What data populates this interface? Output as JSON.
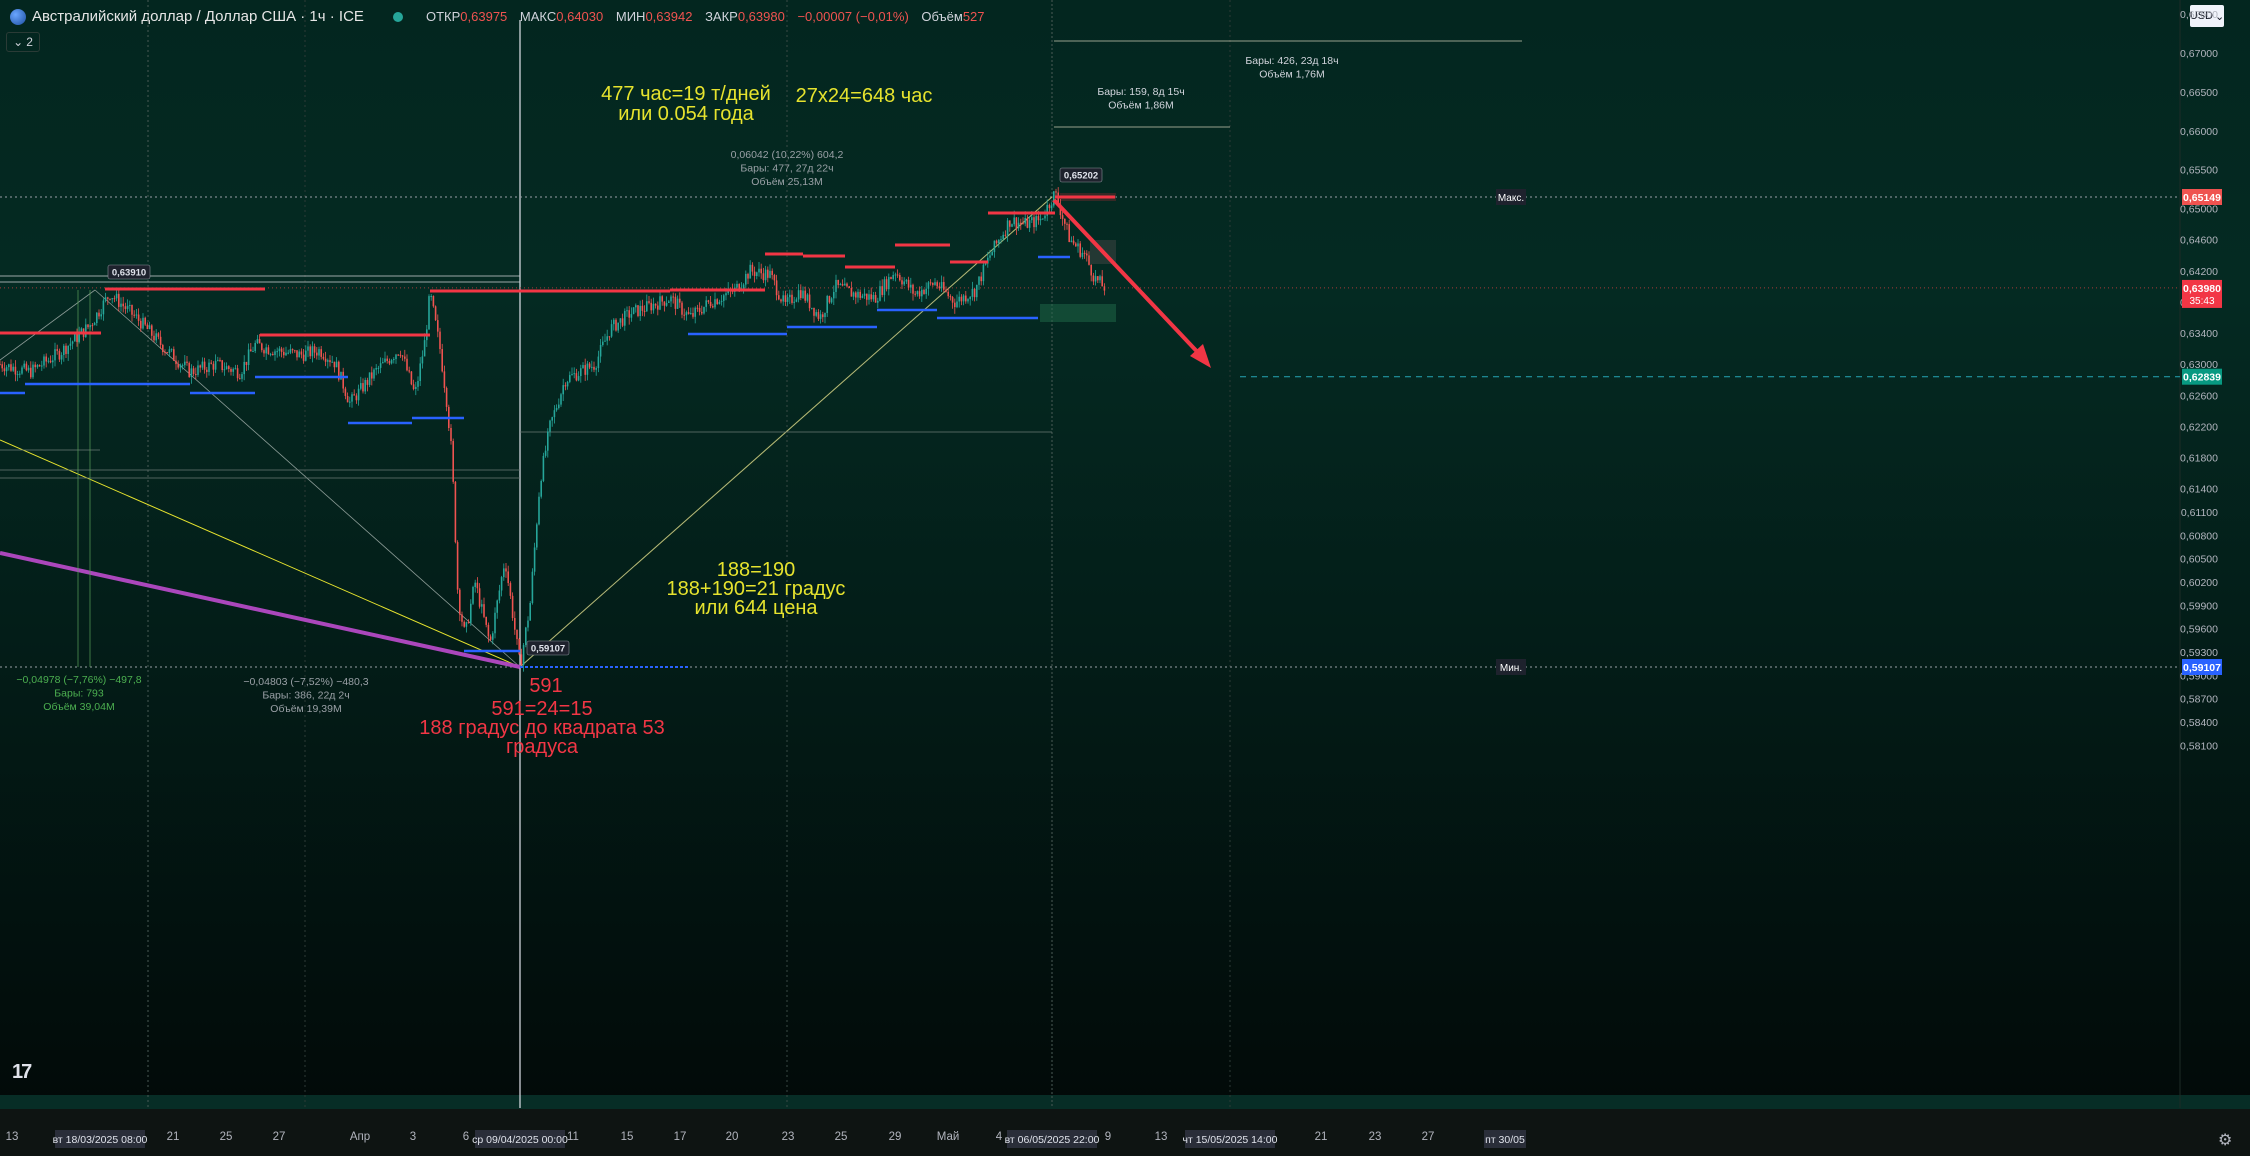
{
  "header": {
    "title": "Австралийский доллар / Доллар США · 1ч · ICE",
    "ohlc": [
      {
        "label": "ОТКР",
        "value": "0,63975"
      },
      {
        "label": "МАКС",
        "value": "0,64030"
      },
      {
        "label": "МИН",
        "value": "0,63942"
      },
      {
        "label": "ЗАКР",
        "value": "0,63980"
      },
      {
        "label": "",
        "value": "−0,00007 (−0,01%)"
      },
      {
        "label": "Объём",
        "value": "527"
      }
    ],
    "indicator_count": "2",
    "currency": "USD"
  },
  "chart_data": {
    "type": "candlestick",
    "symbol": "AUDUSD",
    "timeframe": "1ч",
    "price_axis": {
      "ticks": [
        "0,67500",
        "0,67000",
        "0,66500",
        "0,66000",
        "0,65500",
        "0,65000",
        "0,64600",
        "0,64200",
        "0,63800",
        "0,63400",
        "0,63000",
        "0,62600",
        "0,62200",
        "0,61800",
        "0,61400",
        "0,61100",
        "0,60800",
        "0,60500",
        "0,60200",
        "0,59900",
        "0,59600",
        "0,59300",
        "0,59000",
        "0,58700",
        "0,58400",
        "0,58100"
      ],
      "labels": [
        {
          "text": "0,65149",
          "tag": "Макс.",
          "color": "#ef5350"
        },
        {
          "text": "0,63980",
          "sub": "35:43",
          "color": "#f23645"
        },
        {
          "text": "0,62839",
          "color": "#089981"
        },
        {
          "text": "0,59107",
          "tag": "Мин.",
          "color": "#2962ff"
        }
      ]
    },
    "time_axis": {
      "ticks": [
        "13",
        "21",
        "25",
        "27",
        "Апр",
        "3",
        "6",
        "11",
        "15",
        "17",
        "20",
        "23",
        "25",
        "29",
        "Май",
        "4",
        "9",
        "13",
        "21",
        "23",
        "27",
        "2"
      ],
      "highlights": [
        "вт 18/03/2025   08:00",
        "ср 09/04/2025   00:00",
        "вт 06/05/2025   22:00",
        "чт 15/05/2025   14:00",
        "пт 30/05"
      ]
    },
    "price_path": [
      [
        0,
        0.63
      ],
      [
        30,
        0.629
      ],
      [
        60,
        0.6315
      ],
      [
        90,
        0.635
      ],
      [
        110,
        0.6391
      ],
      [
        140,
        0.6355
      ],
      [
        165,
        0.632
      ],
      [
        190,
        0.629
      ],
      [
        215,
        0.63
      ],
      [
        240,
        0.629
      ],
      [
        255,
        0.6325
      ],
      [
        275,
        0.6318
      ],
      [
        300,
        0.6312
      ],
      [
        320,
        0.6318
      ],
      [
        335,
        0.6302
      ],
      [
        350,
        0.625
      ],
      [
        375,
        0.629
      ],
      [
        400,
        0.632
      ],
      [
        415,
        0.626
      ],
      [
        425,
        0.633
      ],
      [
        430,
        0.6391
      ],
      [
        440,
        0.632
      ],
      [
        447,
        0.625
      ],
      [
        452,
        0.618
      ],
      [
        458,
        0.6
      ],
      [
        465,
        0.595
      ],
      [
        475,
        0.602
      ],
      [
        490,
        0.594
      ],
      [
        505,
        0.605
      ],
      [
        520,
        0.5911
      ],
      [
        530,
        0.599
      ],
      [
        540,
        0.615
      ],
      [
        550,
        0.622
      ],
      [
        565,
        0.628
      ],
      [
        580,
        0.629
      ],
      [
        595,
        0.63
      ],
      [
        610,
        0.6345
      ],
      [
        630,
        0.6365
      ],
      [
        650,
        0.6375
      ],
      [
        670,
        0.6385
      ],
      [
        690,
        0.636
      ],
      [
        710,
        0.638
      ],
      [
        735,
        0.6395
      ],
      [
        750,
        0.642
      ],
      [
        770,
        0.6415
      ],
      [
        785,
        0.6375
      ],
      [
        800,
        0.6395
      ],
      [
        820,
        0.636
      ],
      [
        835,
        0.64
      ],
      [
        855,
        0.639
      ],
      [
        875,
        0.6385
      ],
      [
        895,
        0.642
      ],
      [
        915,
        0.639
      ],
      [
        935,
        0.6405
      ],
      [
        955,
        0.638
      ],
      [
        975,
        0.6395
      ],
      [
        990,
        0.644
      ],
      [
        1010,
        0.6485
      ],
      [
        1025,
        0.648
      ],
      [
        1040,
        0.6485
      ],
      [
        1055,
        0.652
      ],
      [
        1070,
        0.646
      ],
      [
        1085,
        0.644
      ],
      [
        1095,
        0.641
      ],
      [
        1105,
        0.6398
      ]
    ],
    "annotations": [
      {
        "text": "0,63910",
        "kind": "price_flag"
      },
      {
        "text": "0,65202",
        "kind": "price_flag"
      },
      {
        "text": "0,59107",
        "kind": "price_flag"
      },
      {
        "text": "477 час=19 т/дней",
        "color": "#e6e32e"
      },
      {
        "text": "или 0.054 года",
        "color": "#e6e32e"
      },
      {
        "text": "27x24=648 час",
        "color": "#e6e32e"
      },
      {
        "text": "188=190",
        "color": "#e6e32e"
      },
      {
        "text": "188+190=21 градус",
        "color": "#e6e32e"
      },
      {
        "text": "или 644 цена",
        "color": "#e6e32e"
      },
      {
        "text": "591",
        "color": "#f23645"
      },
      {
        "text": "591=24=15",
        "color": "#f23645"
      },
      {
        "text": "188 градус до квадрата 53",
        "color": "#f23645"
      },
      {
        "text": "градуса",
        "color": "#f23645"
      }
    ],
    "measures": [
      {
        "lines": [
          "0,06042 (10,22%) 604,2",
          "Бары: 477, 27д 22ч",
          "Объём 25,13M"
        ],
        "color": "#9aa0a6"
      },
      {
        "lines": [
          "Бары: 159, 8д 15ч",
          "Объём 1,86M"
        ],
        "color": "#d1d4dc"
      },
      {
        "lines": [
          "Бары: 426, 23д 18ч",
          "Объём 1,76M"
        ],
        "color": "#d1d4dc"
      },
      {
        "lines": [
          "−0,04978 (−7,76%) −497,8",
          "Бары: 793",
          "Объём 39,04M"
        ],
        "color": "#4caf50"
      },
      {
        "lines": [
          "−0,04803 (−7,52%) −480,3",
          "Бары: 386, 22д 2ч",
          "Объём 19,39M"
        ],
        "color": "#9aa0a6"
      }
    ],
    "colors": {
      "up": "#26a69a",
      "down": "#ef5350",
      "resistance": "#f23645",
      "support": "#2962ff",
      "fan": "#e6e32e",
      "trend": "#ab47bc"
    }
  }
}
